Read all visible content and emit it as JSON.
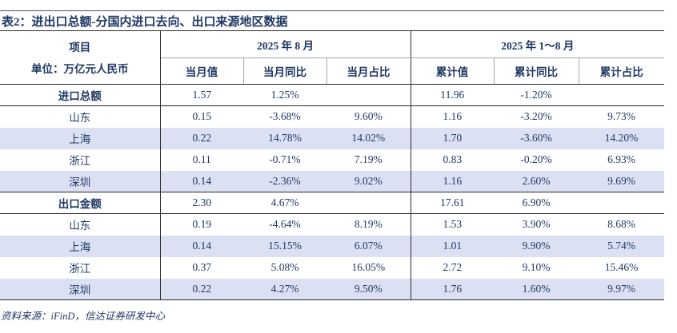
{
  "title": "表2：进出口总额-分国内进口去向、出口来源地区数据",
  "colors": {
    "text_navy": "#1f3864",
    "row_shade": "#dbe1f3",
    "border_dark": "#2b2b2b",
    "border_light": "#a8a8a8"
  },
  "table": {
    "project_label": "项目",
    "unit_label": "单位：万亿元人民币",
    "group_headers": [
      "2025 年 8 月",
      "2025 年 1～8 月"
    ],
    "sub_headers": [
      "当月值",
      "当月同比",
      "当月占比",
      "累计值",
      "累计同比",
      "累计占比"
    ],
    "rows": [
      {
        "label": "进口总额",
        "bold": true,
        "shaded": false,
        "values": [
          "1.57",
          "1.25%",
          "",
          "11.96",
          "-1.20%",
          ""
        ]
      },
      {
        "label": "山东",
        "bold": false,
        "shaded": false,
        "values": [
          "0.15",
          "-3.68%",
          "9.60%",
          "1.16",
          "-3.20%",
          "9.73%"
        ]
      },
      {
        "label": "上海",
        "bold": false,
        "shaded": true,
        "values": [
          "0.22",
          "14.78%",
          "14.02%",
          "1.70",
          "-3.60%",
          "14.20%"
        ]
      },
      {
        "label": "浙江",
        "bold": false,
        "shaded": false,
        "values": [
          "0.11",
          "-0.71%",
          "7.19%",
          "0.83",
          "-0.20%",
          "6.93%"
        ]
      },
      {
        "label": "深圳",
        "bold": false,
        "shaded": true,
        "values": [
          "0.14",
          "-2.36%",
          "9.02%",
          "1.16",
          "2.60%",
          "9.69%"
        ]
      },
      {
        "label": "出口金额",
        "bold": true,
        "shaded": false,
        "values": [
          "2.30",
          "4.67%",
          "",
          "17.61",
          "6.90%",
          ""
        ]
      },
      {
        "label": "山东",
        "bold": false,
        "shaded": false,
        "values": [
          "0.19",
          "-4.64%",
          "8.19%",
          "1.53",
          "3.90%",
          "8.68%"
        ]
      },
      {
        "label": "上海",
        "bold": false,
        "shaded": true,
        "values": [
          "0.14",
          "15.15%",
          "6.07%",
          "1.01",
          "9.90%",
          "5.74%"
        ]
      },
      {
        "label": "浙江",
        "bold": false,
        "shaded": false,
        "values": [
          "0.37",
          "5.08%",
          "16.05%",
          "2.72",
          "9.10%",
          "15.46%"
        ]
      },
      {
        "label": "深圳",
        "bold": false,
        "shaded": true,
        "values": [
          "0.22",
          "4.27%",
          "9.50%",
          "1.76",
          "1.60%",
          "9.97%"
        ]
      }
    ]
  },
  "footer": "资料来源：iFinD，信达证券研发中心"
}
